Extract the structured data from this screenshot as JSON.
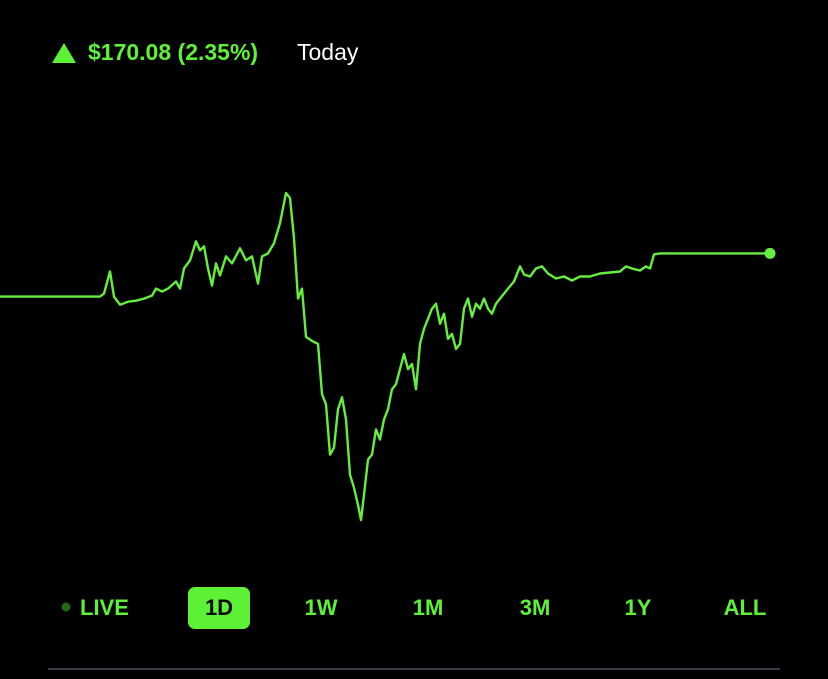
{
  "header": {
    "change": "$170.08 (2.35%)",
    "period": "Today"
  },
  "chart_data": {
    "type": "line",
    "color": "#66ee3e",
    "x": [
      0,
      50,
      100,
      104,
      110,
      114,
      120,
      128,
      136,
      144,
      152,
      156,
      162,
      168,
      176,
      180,
      184,
      190,
      196,
      200,
      204,
      208,
      212,
      216,
      220,
      226,
      232,
      240,
      246,
      252,
      258,
      262,
      268,
      274,
      280,
      286,
      290,
      294,
      298,
      302,
      306,
      312,
      318,
      322,
      326,
      330,
      334,
      338,
      342,
      346,
      350,
      354,
      358,
      361,
      364,
      368,
      372,
      376,
      380,
      384,
      388,
      392,
      396,
      400,
      404,
      408,
      412,
      416,
      420,
      424,
      428,
      432,
      436,
      440,
      444,
      448,
      452,
      456,
      460,
      464,
      468,
      472,
      476,
      480,
      484,
      488,
      492,
      496,
      500,
      504,
      508,
      514,
      520,
      524,
      530,
      536,
      542,
      548,
      556,
      564,
      572,
      580,
      590,
      600,
      610,
      620,
      626,
      632,
      640,
      646,
      650,
      654,
      660,
      700,
      770
    ],
    "values": [
      302,
      302,
      302,
      305,
      327,
      302,
      294,
      297,
      298,
      300,
      303,
      310,
      307,
      310,
      317,
      310,
      330,
      338,
      357,
      348,
      352,
      330,
      313,
      335,
      323,
      342,
      335,
      350,
      338,
      342,
      315,
      342,
      345,
      355,
      375,
      405,
      400,
      360,
      300,
      310,
      262,
      258,
      255,
      205,
      195,
      145,
      152,
      190,
      202,
      180,
      125,
      112,
      95,
      80,
      105,
      140,
      145,
      170,
      160,
      180,
      190,
      210,
      215,
      230,
      245,
      230,
      235,
      210,
      255,
      270,
      280,
      290,
      295,
      275,
      285,
      260,
      265,
      250,
      255,
      290,
      300,
      282,
      295,
      290,
      300,
      290,
      285,
      295,
      300,
      305,
      310,
      317,
      332,
      324,
      322,
      330,
      332,
      325,
      320,
      322,
      318,
      322,
      322,
      325,
      326,
      327,
      332,
      330,
      328,
      332,
      330,
      344,
      345,
      345,
      345
    ]
  },
  "ranges": {
    "live": "LIVE",
    "items": [
      "1D",
      "1W",
      "1M",
      "3M",
      "1Y",
      "ALL"
    ],
    "selected": 0
  }
}
